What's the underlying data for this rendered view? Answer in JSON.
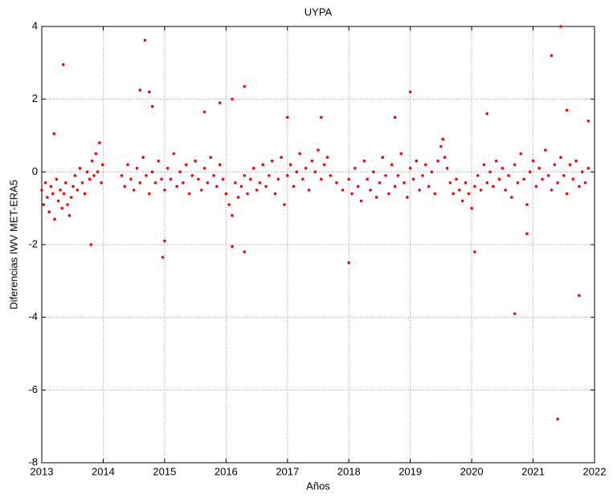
{
  "chart_data": {
    "type": "scatter",
    "title": "UYPA",
    "xlabel": "Años",
    "ylabel": "Diferencias IWV MET-ERA5",
    "xlim": [
      2013,
      2022
    ],
    "xticks": [
      2013,
      2014,
      2015,
      2016,
      2017,
      2018,
      2019,
      2020,
      2021,
      2022
    ],
    "ylim": [
      -8,
      4
    ],
    "yticks": [
      -8,
      -6,
      -4,
      -2,
      0,
      2,
      4
    ],
    "grid": true,
    "series": [
      {
        "name": "UYPA",
        "color": "#ff0000",
        "x": [
          2013.0,
          2013.03,
          2013.06,
          2013.09,
          2013.12,
          2013.15,
          2013.18,
          2013.21,
          2013.24,
          2013.27,
          2013.3,
          2013.33,
          2013.36,
          2013.39,
          2013.42,
          2013.45,
          2013.48,
          2013.51,
          2013.54,
          2013.58,
          2013.62,
          2013.66,
          2013.7,
          2013.74,
          2013.78,
          2013.82,
          2013.85,
          2013.88,
          2013.91,
          2013.94,
          2013.97,
          2013.99,
          2014.3,
          2014.35,
          2014.4,
          2014.45,
          2014.5,
          2014.55,
          2014.6,
          2014.65,
          2014.7,
          2014.75,
          2014.8,
          2014.85,
          2014.9,
          2014.95,
          2015.0,
          2015.05,
          2015.1,
          2015.15,
          2015.2,
          2015.25,
          2015.3,
          2015.35,
          2015.4,
          2015.45,
          2015.5,
          2015.55,
          2015.6,
          2015.65,
          2015.7,
          2015.75,
          2015.8,
          2015.85,
          2015.9,
          2015.95,
          2016.0,
          2016.05,
          2016.1,
          2016.15,
          2016.2,
          2016.25,
          2016.3,
          2016.35,
          2016.4,
          2016.45,
          2016.5,
          2016.55,
          2016.6,
          2016.65,
          2016.7,
          2016.75,
          2016.8,
          2016.85,
          2016.9,
          2016.95,
          2017.0,
          2017.05,
          2017.1,
          2017.15,
          2017.2,
          2017.25,
          2017.3,
          2017.35,
          2017.4,
          2017.45,
          2017.5,
          2017.55,
          2017.6,
          2017.65,
          2017.7,
          2017.8,
          2017.9,
          2018.0,
          2018.05,
          2018.1,
          2018.15,
          2018.2,
          2018.25,
          2018.3,
          2018.35,
          2018.4,
          2018.45,
          2018.5,
          2018.55,
          2018.6,
          2018.65,
          2018.7,
          2018.75,
          2018.8,
          2018.85,
          2018.9,
          2018.95,
          2019.0,
          2019.05,
          2019.1,
          2019.15,
          2019.2,
          2019.25,
          2019.3,
          2019.35,
          2019.4,
          2019.45,
          2019.5,
          2019.53,
          2019.56,
          2019.6,
          2019.65,
          2019.7,
          2019.75,
          2019.8,
          2019.85,
          2019.9,
          2019.95,
          2020.0,
          2020.05,
          2020.1,
          2020.15,
          2020.2,
          2020.25,
          2020.3,
          2020.35,
          2020.4,
          2020.45,
          2020.5,
          2020.55,
          2020.6,
          2020.65,
          2020.7,
          2020.75,
          2020.8,
          2020.85,
          2020.9,
          2020.95,
          2021.0,
          2021.05,
          2021.1,
          2021.15,
          2021.2,
          2021.25,
          2021.3,
          2021.35,
          2021.4,
          2021.45,
          2021.5,
          2021.55,
          2021.6,
          2021.65,
          2021.7,
          2021.75,
          2021.8,
          2021.85,
          2021.9,
          2013.35,
          2014.68,
          2014.6,
          2014.75,
          2014.8,
          2016.3,
          2016.1,
          2015.65,
          2013.2,
          2013.8,
          2014.97,
          2015.0,
          2016.1,
          2016.3,
          2018.0,
          2019.0,
          2020.05,
          2020.7,
          2021.3,
          2021.45,
          2021.55,
          2021.75,
          2021.4,
          2020.9,
          2017.0,
          2018.75,
          2017.55,
          2015.9,
          2020.25,
          2021.9
        ],
        "values": [
          -0.5,
          -0.9,
          -0.3,
          -0.7,
          -1.1,
          -0.4,
          -0.6,
          -1.3,
          -0.2,
          -0.8,
          -0.5,
          -1.0,
          -0.6,
          -0.3,
          -0.9,
          -1.2,
          -0.7,
          -0.4,
          -0.1,
          -0.5,
          0.1,
          -0.3,
          -0.6,
          0.0,
          -0.2,
          0.3,
          -0.1,
          0.5,
          0.0,
          0.8,
          -0.3,
          0.2,
          -0.1,
          -0.4,
          0.2,
          -0.2,
          -0.5,
          0.1,
          -0.3,
          0.4,
          -0.1,
          -0.6,
          0.0,
          -0.3,
          0.3,
          -0.2,
          -0.5,
          0.1,
          -0.2,
          0.5,
          -0.4,
          0.0,
          -0.3,
          0.2,
          -0.6,
          -0.1,
          0.3,
          -0.2,
          -0.5,
          0.1,
          -0.3,
          0.4,
          -0.1,
          -0.4,
          0.2,
          -0.2,
          -0.6,
          -0.9,
          -1.2,
          -0.3,
          -0.7,
          -0.4,
          -0.1,
          -0.6,
          -0.2,
          0.1,
          -0.5,
          -0.3,
          0.2,
          -0.4,
          -0.1,
          0.3,
          -0.6,
          -0.2,
          0.4,
          -0.9,
          -0.1,
          0.2,
          -0.4,
          0.0,
          0.5,
          -0.2,
          0.1,
          -0.5,
          0.3,
          0.0,
          0.6,
          -0.2,
          0.2,
          0.4,
          -0.1,
          -0.3,
          -0.5,
          -0.2,
          -0.6,
          0.1,
          -0.4,
          -0.8,
          0.3,
          -0.2,
          -0.5,
          0.0,
          -0.7,
          -0.3,
          0.4,
          -0.1,
          -0.6,
          0.2,
          -0.4,
          -0.1,
          0.5,
          -0.3,
          -0.7,
          0.1,
          -0.2,
          0.3,
          -0.5,
          -0.1,
          0.2,
          -0.4,
          0.0,
          -0.6,
          0.3,
          0.7,
          0.9,
          0.4,
          0.1,
          -0.3,
          -0.6,
          -0.2,
          -0.5,
          -0.8,
          -0.3,
          -0.6,
          -1.0,
          -0.4,
          -0.1,
          -0.5,
          0.2,
          -0.3,
          0.0,
          -0.4,
          0.3,
          -0.2,
          0.1,
          -0.5,
          -0.1,
          -0.7,
          0.2,
          -0.3,
          0.5,
          -0.2,
          -0.9,
          0.0,
          0.3,
          -0.4,
          0.1,
          -0.2,
          0.6,
          -0.1,
          -0.5,
          0.2,
          -0.3,
          0.4,
          -0.1,
          -0.6,
          0.2,
          -0.2,
          0.3,
          -0.4,
          0.0,
          -0.3,
          0.1,
          2.95,
          3.62,
          2.25,
          2.2,
          1.8,
          2.35,
          2.0,
          1.65,
          1.05,
          -2.0,
          -2.35,
          -1.9,
          -2.05,
          -2.2,
          -2.5,
          2.2,
          -2.2,
          -3.9,
          3.2,
          4.0,
          1.7,
          -3.4,
          -6.8,
          -1.7,
          1.5,
          1.5,
          1.5,
          1.9,
          1.6,
          1.4
        ]
      }
    ]
  }
}
